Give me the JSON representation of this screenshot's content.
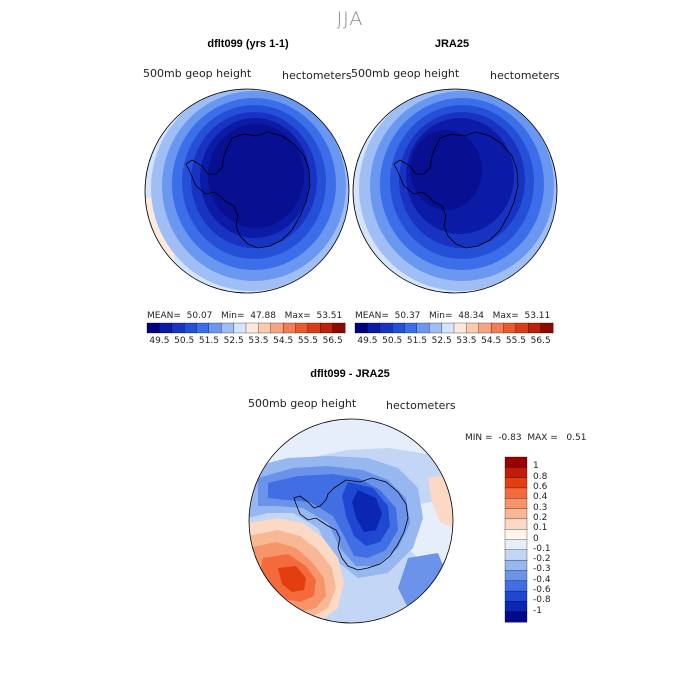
{
  "season": "JJA",
  "top_left": {
    "title": "dflt099 (yrs 1-1)",
    "var_label": "500mb geop height",
    "units": "hectometers",
    "mean_label": "MEAN=",
    "mean": "50.07",
    "min_label": "Min=",
    "min": "47.88",
    "max_label": "Max=",
    "max": "53.51"
  },
  "top_right": {
    "title": "JRA25",
    "var_label": "500mb geop height",
    "units": "hectometers",
    "mean_label": "MEAN=",
    "mean": "50.37",
    "min_label": "Min=",
    "min": "48.34",
    "max_label": "Max=",
    "max": "53.11"
  },
  "field_colorbar": {
    "tick_labels": [
      "49.5",
      "50.5",
      "51.5",
      "52.5",
      "53.5",
      "54.5",
      "55.5",
      "56.5"
    ],
    "colors": [
      "#00007f",
      "#0b1ba6",
      "#1833c2",
      "#2450d8",
      "#3b6ee8",
      "#6a97f0",
      "#9fbef5",
      "#d4e4fa",
      "#fde9dd",
      "#fbc9ae",
      "#f7a482",
      "#f37d56",
      "#ea5a2f",
      "#d83c18",
      "#b8230a",
      "#8a0a00"
    ]
  },
  "bottom": {
    "title": "dflt099 - JRA25",
    "var_label": "500mb geop height",
    "units": "hectometers",
    "min_label": "MIN =",
    "min": "-0.83",
    "max_label": "MAX =",
    "max": "0.51"
  },
  "diff_colorbar": {
    "labels": [
      "1",
      "0.8",
      "0.6",
      "0.4",
      "0.3",
      "0.2",
      "0.1",
      "0",
      "-0.1",
      "-0.2",
      "-0.3",
      "-0.4",
      "-0.6",
      "-0.8",
      "-1"
    ],
    "colors": [
      "#990000",
      "#c21c06",
      "#e23e10",
      "#f56a3d",
      "#f79469",
      "#f8b896",
      "#fbd9c5",
      "#fff5ed",
      "#e6eefb",
      "#c3d6f6",
      "#96b7f0",
      "#6b93ea",
      "#3f6fe3",
      "#1f48d2",
      "#0c26b4",
      "#020a8a"
    ]
  },
  "icons": [
    "antarctica-outline-icon"
  ]
}
